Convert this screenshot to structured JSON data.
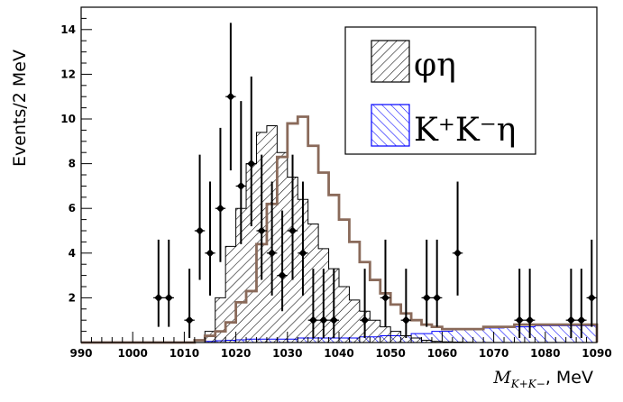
{
  "chart_data": {
    "type": "histogram",
    "title": "",
    "xlabel": "M",
    "xlabel_sub": "K+K−",
    "xlabel_suffix": ", MeV",
    "ylabel": "Events/2 MeV",
    "xlim": [
      990,
      1090
    ],
    "ylim": [
      0,
      15
    ],
    "x_ticks": [
      990,
      1000,
      1010,
      1020,
      1030,
      1040,
      1050,
      1060,
      1070,
      1080,
      1090
    ],
    "y_ticks": [
      2,
      4,
      6,
      8,
      10,
      12,
      14
    ],
    "grid": false,
    "legend_position": "top-right",
    "legend": [
      {
        "label": "φη",
        "style": "black-hatch"
      },
      {
        "label": "K⁺K⁻η",
        "style": "blue-hatch"
      }
    ],
    "bins": {
      "edges_start": 990,
      "width": 2,
      "phi_eta": [
        0,
        0,
        0,
        0,
        0,
        0,
        0,
        0,
        0,
        0,
        0,
        0,
        0.5,
        2.0,
        4.3,
        6.0,
        8.0,
        9.4,
        9.7,
        8.5,
        7.4,
        6.4,
        5.3,
        4.2,
        3.3,
        2.5,
        1.9,
        1.4,
        1.0,
        0.7,
        0.5,
        0.3,
        0.2,
        0.1,
        0.05,
        0.03,
        0.02,
        0.01,
        0,
        0,
        0,
        0,
        0,
        0,
        0,
        0,
        0,
        0,
        0,
        0
      ],
      "kk_eta": [
        0,
        0,
        0,
        0,
        0,
        0,
        0,
        0,
        0,
        0,
        0,
        0,
        0.05,
        0.08,
        0.1,
        0.12,
        0.15,
        0.15,
        0.15,
        0.15,
        0.15,
        0.2,
        0.2,
        0.2,
        0.2,
        0.2,
        0.2,
        0.25,
        0.25,
        0.3,
        0.3,
        0.3,
        0.4,
        0.4,
        0.5,
        0.5,
        0.6,
        0.6,
        0.6,
        0.65,
        0.65,
        0.7,
        0.7,
        0.7,
        0.75,
        0.75,
        0.75,
        0.75,
        0.75,
        0.75
      ],
      "total": [
        0,
        0,
        0,
        0,
        0,
        0,
        0,
        0,
        0,
        0,
        0,
        0.1,
        0.3,
        0.5,
        0.9,
        1.8,
        2.3,
        4.4,
        6.2,
        8.3,
        9.8,
        10.1,
        8.8,
        7.6,
        6.6,
        5.5,
        4.5,
        3.6,
        2.8,
        2.2,
        1.7,
        1.3,
        1.0,
        0.8,
        0.7,
        0.6,
        0.6,
        0.6,
        0.6,
        0.7,
        0.7,
        0.7,
        0.8,
        0.8,
        0.8,
        0.8,
        0.8,
        0.8,
        0.8,
        0.8
      ]
    },
    "points": [
      {
        "x": 1005,
        "y": 2,
        "err": [
          1.3,
          2.6
        ]
      },
      {
        "x": 1007,
        "y": 2,
        "err": [
          1.3,
          2.6
        ]
      },
      {
        "x": 1011,
        "y": 1,
        "err": [
          0.8,
          2.3
        ]
      },
      {
        "x": 1013,
        "y": 5,
        "err": [
          2.2,
          3.4
        ]
      },
      {
        "x": 1015,
        "y": 4,
        "err": [
          1.9,
          3.2
        ]
      },
      {
        "x": 1017,
        "y": 6,
        "err": [
          2.4,
          3.6
        ]
      },
      {
        "x": 1019,
        "y": 11,
        "err": [
          3.3,
          3.3
        ]
      },
      {
        "x": 1021,
        "y": 7,
        "err": [
          2.6,
          3.8
        ]
      },
      {
        "x": 1023,
        "y": 8,
        "err": [
          2.8,
          3.9
        ]
      },
      {
        "x": 1025,
        "y": 5,
        "err": [
          2.2,
          3.4
        ]
      },
      {
        "x": 1027,
        "y": 4,
        "err": [
          1.9,
          3.2
        ]
      },
      {
        "x": 1029,
        "y": 3,
        "err": [
          1.6,
          2.9
        ]
      },
      {
        "x": 1031,
        "y": 5,
        "err": [
          2.2,
          3.4
        ]
      },
      {
        "x": 1033,
        "y": 4,
        "err": [
          1.9,
          3.2
        ]
      },
      {
        "x": 1035,
        "y": 1,
        "err": [
          0.8,
          2.3
        ]
      },
      {
        "x": 1037,
        "y": 1,
        "err": [
          0.8,
          2.3
        ]
      },
      {
        "x": 1039,
        "y": 1,
        "err": [
          0.8,
          2.3
        ]
      },
      {
        "x": 1045,
        "y": 1,
        "err": [
          0.8,
          2.3
        ]
      },
      {
        "x": 1049,
        "y": 2,
        "err": [
          1.3,
          2.6
        ]
      },
      {
        "x": 1053,
        "y": 1,
        "err": [
          0.8,
          2.3
        ]
      },
      {
        "x": 1057,
        "y": 2,
        "err": [
          1.3,
          2.6
        ]
      },
      {
        "x": 1059,
        "y": 2,
        "err": [
          1.3,
          2.6
        ]
      },
      {
        "x": 1063,
        "y": 4,
        "err": [
          1.9,
          3.2
        ]
      },
      {
        "x": 1075,
        "y": 1,
        "err": [
          0.8,
          2.3
        ]
      },
      {
        "x": 1077,
        "y": 1,
        "err": [
          0.8,
          2.3
        ]
      },
      {
        "x": 1085,
        "y": 1,
        "err": [
          0.8,
          2.3
        ]
      },
      {
        "x": 1087,
        "y": 1,
        "err": [
          0.8,
          2.3
        ]
      },
      {
        "x": 1089,
        "y": 2,
        "err": [
          1.3,
          2.6
        ]
      }
    ],
    "colors": {
      "total_line": "#8a6a5a",
      "phi_eta_hatch": "#000000",
      "kk_eta_hatch": "#0000ff",
      "points": "#000000"
    }
  }
}
